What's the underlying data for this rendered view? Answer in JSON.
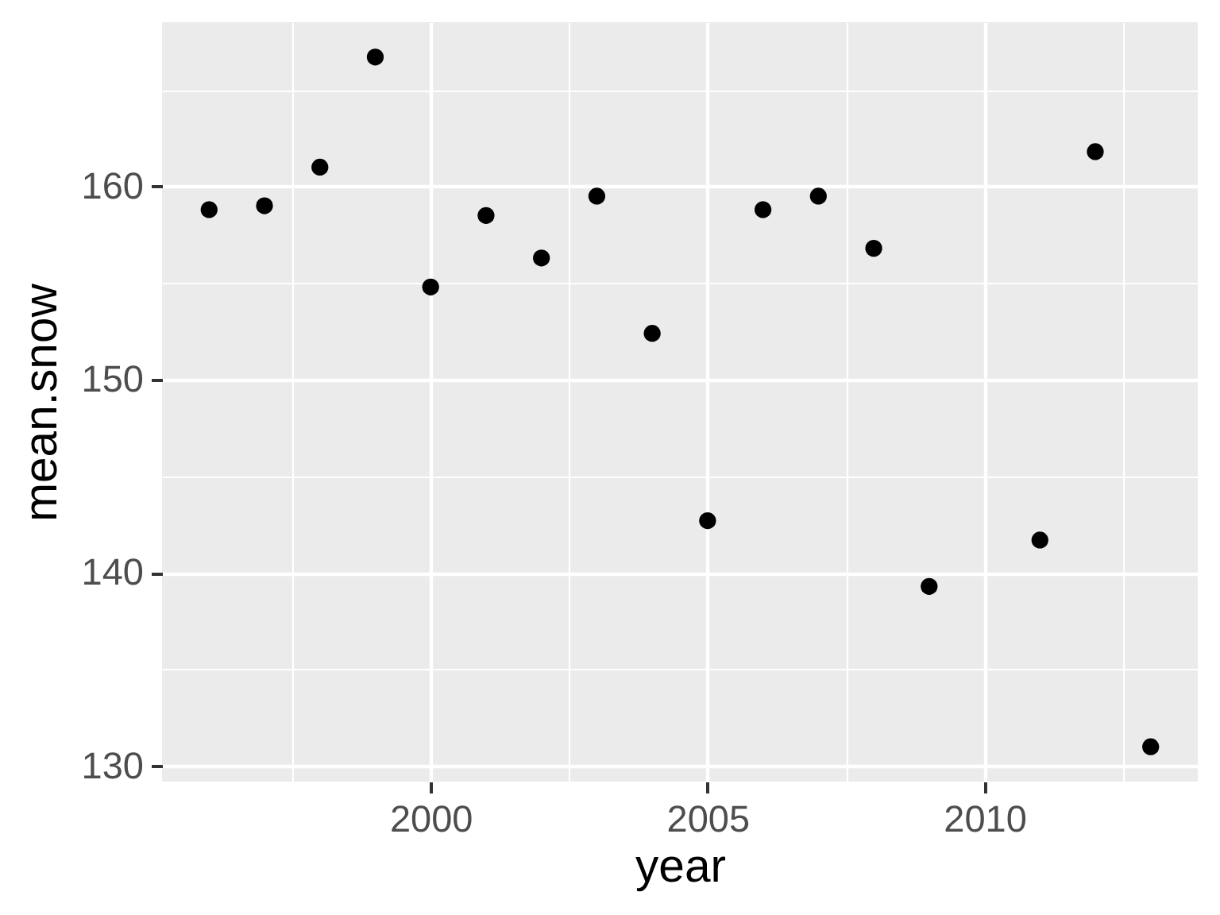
{
  "chart_data": {
    "type": "scatter",
    "xlabel": "year",
    "ylabel": "mean.snow",
    "x": [
      1996,
      1997,
      1998,
      1999,
      2000,
      2001,
      2002,
      2003,
      2004,
      2005,
      2006,
      2007,
      2008,
      2009,
      2011,
      2012,
      2013
    ],
    "values": [
      158.8,
      159.0,
      161.0,
      166.7,
      154.8,
      158.5,
      156.3,
      159.5,
      152.4,
      142.7,
      158.8,
      159.5,
      156.8,
      139.3,
      141.7,
      161.8,
      131.0
    ],
    "color": "#000000",
    "marker": "circle",
    "xlim": [
      1995.15,
      2013.85
    ],
    "ylim": [
      129.2,
      168.5
    ],
    "xticks": [
      2000,
      2005,
      2010
    ],
    "yticks": [
      130,
      140,
      150,
      160
    ],
    "grid": true
  }
}
